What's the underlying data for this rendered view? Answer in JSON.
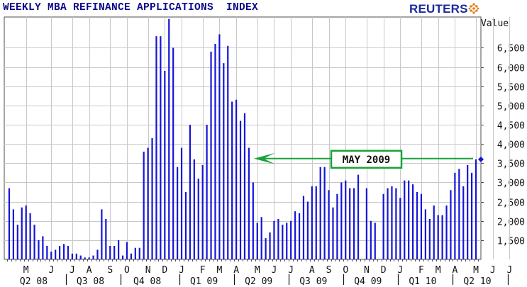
{
  "header": {
    "title": "WEEKLY MBA REFINANCE APPLICATIONS  INDEX",
    "brand": "REUTERS"
  },
  "colors": {
    "bar": "#1515d8",
    "grid": "#c8c8c8",
    "axis": "#4d4d4d",
    "callout": "#19a23a",
    "title": "#0b0b8a",
    "brand": "#1a2b9c",
    "brand_icon": "#e07a10"
  },
  "icons": {
    "brand": "reuters-dots-icon"
  },
  "chart_data": {
    "type": "bar",
    "title": "WEEKLY MBA REFINANCE APPLICATIONS  INDEX",
    "ylabel": "Value",
    "ylim": [
      1000,
      7300
    ],
    "y_axis_side": "right",
    "grid": true,
    "yticks": [
      {
        "value": 1500,
        "label": "1,500"
      },
      {
        "value": 2000,
        "label": "2,000"
      },
      {
        "value": 2500,
        "label": "2,500"
      },
      {
        "value": 3000,
        "label": "3,000"
      },
      {
        "value": 3500,
        "label": "3,500"
      },
      {
        "value": 4000,
        "label": "4,000"
      },
      {
        "value": 4500,
        "label": "4,500"
      },
      {
        "value": 5000,
        "label": "5,000"
      },
      {
        "value": 5500,
        "label": "5,500"
      },
      {
        "value": 6000,
        "label": "6,000"
      },
      {
        "value": 6500,
        "label": "6,500"
      }
    ],
    "month_labels": [
      {
        "label": "M",
        "week": 4
      },
      {
        "label": "J",
        "week": 10
      },
      {
        "label": "J",
        "week": 15
      },
      {
        "label": "A",
        "week": 19
      },
      {
        "label": "S",
        "week": 24
      },
      {
        "label": "O",
        "week": 28
      },
      {
        "label": "N",
        "week": 33
      },
      {
        "label": "D",
        "week": 37
      },
      {
        "label": "J",
        "week": 41
      },
      {
        "label": "F",
        "week": 46
      },
      {
        "label": "M",
        "week": 50
      },
      {
        "label": "A",
        "week": 54
      },
      {
        "label": "M",
        "week": 59
      },
      {
        "label": "J",
        "week": 63
      },
      {
        "label": "J",
        "week": 67
      },
      {
        "label": "A",
        "week": 72
      },
      {
        "label": "S",
        "week": 76
      },
      {
        "label": "O",
        "week": 80
      },
      {
        "label": "N",
        "week": 85
      },
      {
        "label": "D",
        "week": 89
      },
      {
        "label": "J",
        "week": 93
      },
      {
        "label": "F",
        "week": 98
      },
      {
        "label": "M",
        "week": 102
      },
      {
        "label": "A",
        "week": 106
      },
      {
        "label": "M",
        "week": 111
      },
      {
        "label": "J",
        "week": 115
      },
      {
        "label": "J",
        "week": 119
      }
    ],
    "quarter_labels": [
      "Q2 08",
      "Q3 08",
      "Q4 08",
      "Q1 09",
      "Q2 09",
      "Q3 09",
      "Q4 09",
      "Q1 10",
      "Q2 10"
    ],
    "quarter_boundaries": [
      13,
      26,
      40,
      53,
      66,
      79,
      92,
      105,
      118
    ],
    "values": [
      2850,
      2300,
      1900,
      2350,
      2400,
      2200,
      1900,
      1500,
      1600,
      1350,
      1200,
      1250,
      1350,
      1400,
      1350,
      1150,
      1150,
      1100,
      1050,
      1050,
      1100,
      1250,
      2300,
      2050,
      1350,
      1350,
      1500,
      1100,
      1450,
      1150,
      1300,
      1300,
      3800,
      3900,
      4150,
      6800,
      6800,
      5900,
      7250,
      6500,
      3400,
      3900,
      2750,
      4500,
      3600,
      3100,
      3450,
      4500,
      6400,
      6600,
      6850,
      6100,
      6550,
      5100,
      5150,
      4600,
      4800,
      3900,
      3000,
      1950,
      2100,
      1550,
      1700,
      2000,
      2050,
      1900,
      1950,
      2000,
      2250,
      2200,
      2650,
      2500,
      2900,
      2900,
      3400,
      3400,
      2800,
      2350,
      2700,
      3000,
      3050,
      2850,
      2850,
      3200,
      1000,
      2850,
      2000,
      1950,
      1000,
      2700,
      2850,
      2900,
      2850,
      2600,
      3050,
      3050,
      2950,
      2750,
      2700,
      2300,
      2050,
      2400,
      2150,
      2150,
      2400,
      2800,
      3250,
      3350,
      2900,
      3450,
      3250,
      3600
    ],
    "last_value_marker": 3600,
    "annotation": {
      "text": "MAY 2009",
      "value": 3620,
      "target_week": 58
    }
  }
}
